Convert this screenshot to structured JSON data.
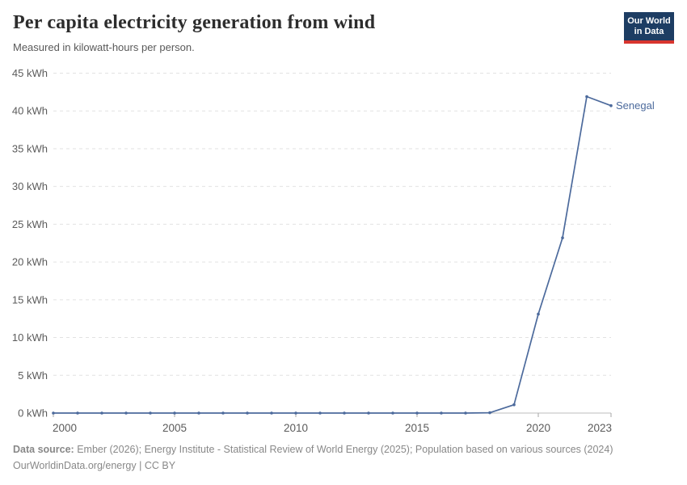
{
  "header": {
    "logo": {
      "line1": "Our World",
      "line2": "in Data",
      "bg_color": "#1d3d63",
      "bar_color": "#d8352e"
    }
  },
  "chart_data": {
    "type": "line",
    "title": "Per capita electricity generation from wind",
    "subtitle": "Measured in kilowatt-hours per person.",
    "xlabel": "",
    "ylabel": "kilowatt-hours per person",
    "unit": "kWh",
    "xlim": [
      2000,
      2023
    ],
    "ylim": [
      0,
      45
    ],
    "grid": "horizontal-dashed",
    "legend_position": "line-end-label",
    "yticks": [
      {
        "value": 0,
        "label": "0 kWh"
      },
      {
        "value": 5,
        "label": "5 kWh"
      },
      {
        "value": 10,
        "label": "10 kWh"
      },
      {
        "value": 15,
        "label": "15 kWh"
      },
      {
        "value": 20,
        "label": "20 kWh"
      },
      {
        "value": 25,
        "label": "25 kWh"
      },
      {
        "value": 30,
        "label": "30 kWh"
      },
      {
        "value": 35,
        "label": "35 kWh"
      },
      {
        "value": 40,
        "label": "40 kWh"
      },
      {
        "value": 45,
        "label": "45 kWh"
      }
    ],
    "xticks": [
      {
        "value": 2000,
        "label": "2000"
      },
      {
        "value": 2005,
        "label": "2005"
      },
      {
        "value": 2010,
        "label": "2010"
      },
      {
        "value": 2015,
        "label": "2015"
      },
      {
        "value": 2020,
        "label": "2020"
      },
      {
        "value": 2023,
        "label": "2023"
      }
    ],
    "series": [
      {
        "name": "Senegal",
        "color": "#4C6A9C",
        "points": [
          [
            2000,
            0
          ],
          [
            2001,
            0
          ],
          [
            2002,
            0
          ],
          [
            2003,
            0
          ],
          [
            2004,
            0
          ],
          [
            2005,
            0
          ],
          [
            2006,
            0
          ],
          [
            2007,
            0
          ],
          [
            2008,
            0
          ],
          [
            2009,
            0
          ],
          [
            2010,
            0
          ],
          [
            2011,
            0
          ],
          [
            2012,
            0
          ],
          [
            2013,
            0
          ],
          [
            2014,
            0
          ],
          [
            2015,
            0
          ],
          [
            2016,
            0
          ],
          [
            2017,
            0
          ],
          [
            2018,
            0.04
          ],
          [
            2019,
            1.1
          ],
          [
            2020,
            13.1
          ],
          [
            2021,
            23.2
          ],
          [
            2022,
            41.9
          ],
          [
            2023,
            40.7
          ]
        ]
      }
    ]
  },
  "footer": {
    "datasource_label": "Data source:",
    "datasource_text": " Ember (2026); Energy Institute - Statistical Review of World Energy (2025); Population based on various sources (2024)",
    "url": "OurWorldinData.org/energy",
    "separator": " | ",
    "license": "CC BY"
  }
}
